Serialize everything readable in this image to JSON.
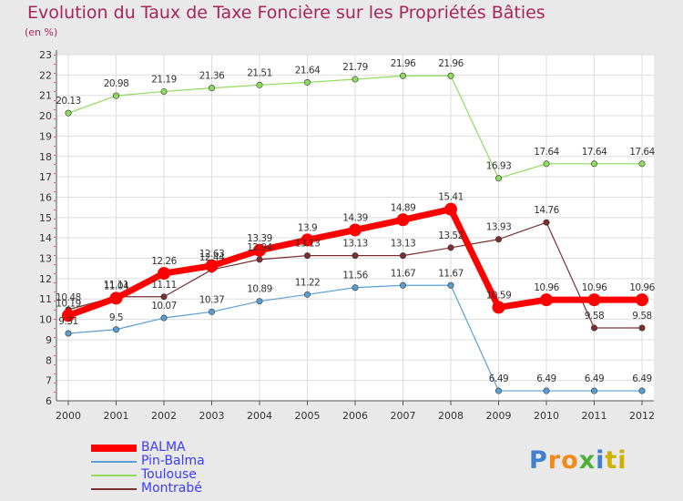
{
  "chart_data": {
    "type": "line",
    "title": "Evolution du Taux de Taxe Foncière sur les Propriétés Bâties",
    "subtitle": "(en %)",
    "xlabel": "",
    "ylabel": "",
    "categories": [
      "2000",
      "2001",
      "2002",
      "2003",
      "2004",
      "2005",
      "2006",
      "2007",
      "2008",
      "2009",
      "2010",
      "2011",
      "2012"
    ],
    "ylim": [
      6,
      23
    ],
    "yticks": [
      "6",
      "7",
      "8",
      "9",
      "10",
      "11",
      "12",
      "13",
      "14",
      "15",
      "16",
      "17",
      "18",
      "19",
      "20",
      "21",
      "22",
      "23"
    ],
    "series": [
      {
        "name": "BALMA",
        "color": "#ff0000",
        "width": 7,
        "marker": 7,
        "values": [
          10.19,
          11.04,
          12.26,
          12.63,
          13.39,
          13.9,
          14.39,
          14.89,
          15.41,
          10.59,
          10.96,
          10.96,
          10.96
        ],
        "labels": [
          "10.19",
          "11.04",
          "12.26",
          "12.63",
          "13.39",
          "13.9",
          "14.39",
          "14.89",
          "15.41",
          "10.59",
          "10.96",
          "10.96",
          "10.96"
        ]
      },
      {
        "name": "Pin-Balma",
        "color": "#5a9fd4",
        "width": 1.2,
        "marker": 3.2,
        "values": [
          9.31,
          9.5,
          10.07,
          10.37,
          10.89,
          11.22,
          11.56,
          11.67,
          11.67,
          6.49,
          6.49,
          6.49,
          6.49
        ],
        "labels": [
          "9.31",
          "9.5",
          "10.07",
          "10.37",
          "10.89",
          "11.22",
          "11.56",
          "11.67",
          "11.67",
          "6.49",
          "6.49",
          "6.49",
          "6.49"
        ]
      },
      {
        "name": "Toulouse",
        "color": "#8ddc5e",
        "width": 1.2,
        "marker": 3.2,
        "values": [
          20.13,
          20.98,
          21.19,
          21.36,
          21.51,
          21.64,
          21.79,
          21.96,
          21.96,
          16.93,
          17.64,
          17.64,
          17.64
        ],
        "labels": [
          "20.13",
          "20.98",
          "21.19",
          "21.36",
          "21.51",
          "21.64",
          "21.79",
          "21.96",
          "21.96",
          "16.93",
          "17.64",
          "17.64",
          "17.64"
        ]
      },
      {
        "name": "Montrabé",
        "color": "#7a3030",
        "width": 1.2,
        "marker": 3.2,
        "values": [
          10.48,
          11.11,
          11.11,
          12.44,
          12.94,
          13.13,
          13.13,
          13.13,
          13.52,
          13.93,
          14.76,
          9.58,
          9.58
        ],
        "labels": [
          "10.48",
          "11.11",
          "11.11",
          "12.44",
          "12.94",
          "13.13",
          "13.13",
          "13.13",
          "13.52",
          "13.93",
          "14.76",
          "9.58",
          "9.58"
        ]
      }
    ],
    "grid": true,
    "legend_position": "bottom-left"
  },
  "logo": {
    "text": "Proxiti",
    "letters": [
      {
        "ch": "P",
        "color": "#3d7fd1"
      },
      {
        "ch": "r",
        "color": "#f28a1a"
      },
      {
        "ch": "o",
        "color": "#f28a1a"
      },
      {
        "ch": "x",
        "color": "#4caf3c"
      },
      {
        "ch": "i",
        "color": "#3d7fd1"
      },
      {
        "ch": "t",
        "color": "#d0b000"
      },
      {
        "ch": "i",
        "color": "#d0b000"
      }
    ]
  }
}
